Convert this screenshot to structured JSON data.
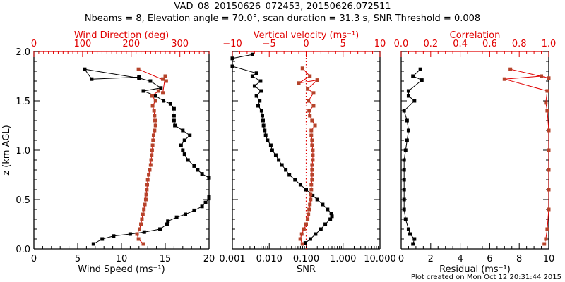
{
  "title": {
    "line1": "VAD_08_20150626_072453, 20150626.072511",
    "line2": "Nbeams = 8, Elevation angle = 70.0°, scan duration = 31.3 s, SNR Threshold = 0.008"
  },
  "footer": "Plot created on Mon Oct 12 20:31:44 2015",
  "colors": {
    "black_series": "#000000",
    "red_series": "#b5432a",
    "red_axis": "#e00000"
  },
  "chart_data": [
    {
      "type": "line",
      "panel": "wind",
      "ylabel": "z (km AGL)",
      "ylim": [
        0,
        2.0
      ],
      "yticks": [
        "0.0",
        "0.5",
        "1.0",
        "1.5",
        "2.0"
      ],
      "bottom_axis": {
        "label": "Wind Speed (ms⁻¹)",
        "range": [
          0,
          20
        ],
        "ticks": [
          "0",
          "5",
          "10",
          "15",
          "20"
        ]
      },
      "top_axis": {
        "label": "Wind Direction (deg)",
        "range": [
          0,
          360
        ],
        "ticks": [
          "0",
          "100",
          "200",
          "300"
        ]
      },
      "series": [
        {
          "name": "Wind Speed",
          "color": "black",
          "axis": "bottom",
          "points": [
            [
              6.8,
              0.05
            ],
            [
              7.8,
              0.1
            ],
            [
              9.1,
              0.13
            ],
            [
              11.0,
              0.15
            ],
            [
              12.6,
              0.17
            ],
            [
              14.4,
              0.2
            ],
            [
              15.2,
              0.25
            ],
            [
              15.3,
              0.28
            ],
            [
              16.3,
              0.32
            ],
            [
              17.3,
              0.35
            ],
            [
              18.3,
              0.39
            ],
            [
              19.2,
              0.43
            ],
            [
              19.6,
              0.47
            ],
            [
              20.0,
              0.51
            ],
            [
              20.0,
              0.53
            ],
            [
              20.0,
              0.72
            ],
            [
              19.2,
              0.76
            ],
            [
              18.7,
              0.8
            ],
            [
              18.3,
              0.84
            ],
            [
              17.6,
              0.9
            ],
            [
              17.2,
              0.96
            ],
            [
              17.0,
              1.0
            ],
            [
              16.8,
              1.05
            ],
            [
              17.2,
              1.1
            ],
            [
              17.8,
              1.15
            ],
            [
              17.0,
              1.2
            ],
            [
              16.1,
              1.25
            ],
            [
              16.0,
              1.3
            ],
            [
              16.0,
              1.35
            ],
            [
              16.0,
              1.42
            ],
            [
              15.6,
              1.47
            ],
            [
              14.8,
              1.5
            ],
            [
              13.9,
              1.55
            ],
            [
              12.5,
              1.6
            ],
            [
              14.5,
              1.63
            ],
            [
              13.3,
              1.7
            ],
            [
              12.0,
              1.73
            ],
            [
              5.8,
              1.82
            ],
            [
              6.6,
              1.72
            ],
            [
              12.0,
              1.74
            ]
          ]
        },
        {
          "name": "Wind Direction",
          "color": "red",
          "axis": "top",
          "points": [
            [
              225,
              0.05
            ],
            [
              215,
              0.1
            ],
            [
              212,
              0.15
            ],
            [
              217,
              0.2
            ],
            [
              220,
              0.25
            ],
            [
              222,
              0.3
            ],
            [
              224,
              0.35
            ],
            [
              226,
              0.4
            ],
            [
              228,
              0.45
            ],
            [
              230,
              0.5
            ],
            [
              231,
              0.55
            ],
            [
              232,
              0.6
            ],
            [
              233,
              0.65
            ],
            [
              234,
              0.7
            ],
            [
              236,
              0.75
            ],
            [
              238,
              0.8
            ],
            [
              240,
              0.85
            ],
            [
              241,
              0.9
            ],
            [
              242,
              0.95
            ],
            [
              243,
              1.0
            ],
            [
              244,
              1.05
            ],
            [
              245,
              1.1
            ],
            [
              246,
              1.15
            ],
            [
              248,
              1.2
            ],
            [
              250,
              1.25
            ],
            [
              249,
              1.3
            ],
            [
              248,
              1.35
            ],
            [
              247,
              1.4
            ],
            [
              244,
              1.45
            ],
            [
              250,
              1.5
            ],
            [
              243,
              1.55
            ],
            [
              256,
              1.6
            ],
            [
              265,
              1.58
            ],
            [
              270,
              1.75
            ],
            [
              265,
              1.72
            ],
            [
              272,
              1.7
            ],
            [
              215,
              1.82
            ]
          ]
        }
      ]
    },
    {
      "type": "line",
      "panel": "snr",
      "ylim": [
        0,
        2.0
      ],
      "bottom_axis": {
        "label": "SNR",
        "range": [
          0.001,
          10.0
        ],
        "scale": "log",
        "ticks": [
          "0.001",
          "0.010",
          "0.100",
          "1.000",
          "10.000"
        ]
      },
      "top_axis": {
        "label": "Vertical velocity (ms⁻¹)",
        "range": [
          -10,
          10
        ],
        "ticks": [
          "−10",
          "−5",
          "0",
          "5",
          "10"
        ]
      },
      "reference_line": {
        "axis": "top",
        "value": 0,
        "style": "dotted"
      },
      "series": [
        {
          "name": "SNR",
          "color": "black",
          "axis": "bottom",
          "points": [
            [
              0.095,
              0.06
            ],
            [
              0.13,
              0.1
            ],
            [
              0.18,
              0.15
            ],
            [
              0.25,
              0.2
            ],
            [
              0.33,
              0.25
            ],
            [
              0.45,
              0.3
            ],
            [
              0.5,
              0.33
            ],
            [
              0.48,
              0.36
            ],
            [
              0.38,
              0.4
            ],
            [
              0.28,
              0.45
            ],
            [
              0.2,
              0.5
            ],
            [
              0.15,
              0.54
            ],
            [
              0.1,
              0.6
            ],
            [
              0.07,
              0.65
            ],
            [
              0.05,
              0.7
            ],
            [
              0.035,
              0.75
            ],
            [
              0.028,
              0.8
            ],
            [
              0.022,
              0.85
            ],
            [
              0.018,
              0.9
            ],
            [
              0.015,
              0.95
            ],
            [
              0.012,
              1.0
            ],
            [
              0.011,
              1.05
            ],
            [
              0.009,
              1.1
            ],
            [
              0.008,
              1.15
            ],
            [
              0.0075,
              1.2
            ],
            [
              0.007,
              1.25
            ],
            [
              0.0068,
              1.3
            ],
            [
              0.0065,
              1.35
            ],
            [
              0.0062,
              1.4
            ],
            [
              0.005,
              1.45
            ],
            [
              0.0055,
              1.5
            ],
            [
              0.0045,
              1.55
            ],
            [
              0.006,
              1.6
            ],
            [
              0.004,
              1.65
            ],
            [
              0.0058,
              1.7
            ],
            [
              0.0035,
              1.75
            ],
            [
              0.0045,
              1.78
            ],
            [
              0.001,
              1.85
            ],
            [
              0.001,
              1.93
            ],
            [
              0.0035,
              1.97
            ]
          ]
        },
        {
          "name": "Vertical velocity",
          "color": "red",
          "axis": "top",
          "points": [
            [
              -0.5,
              0.05
            ],
            [
              -0.8,
              0.1
            ],
            [
              -0.6,
              0.15
            ],
            [
              -0.3,
              0.2
            ],
            [
              0.0,
              0.25
            ],
            [
              0.2,
              0.3
            ],
            [
              0.3,
              0.35
            ],
            [
              0.4,
              0.4
            ],
            [
              0.5,
              0.45
            ],
            [
              0.6,
              0.5
            ],
            [
              0.6,
              0.55
            ],
            [
              0.7,
              0.6
            ],
            [
              0.7,
              0.65
            ],
            [
              0.8,
              0.7
            ],
            [
              0.8,
              0.75
            ],
            [
              0.8,
              0.8
            ],
            [
              0.8,
              0.85
            ],
            [
              0.9,
              0.9
            ],
            [
              0.9,
              0.95
            ],
            [
              0.9,
              1.0
            ],
            [
              0.8,
              1.05
            ],
            [
              0.8,
              1.1
            ],
            [
              0.7,
              1.15
            ],
            [
              0.7,
              1.2
            ],
            [
              1.2,
              1.25
            ],
            [
              0.8,
              1.3
            ],
            [
              0.5,
              1.35
            ],
            [
              0.4,
              1.4
            ],
            [
              1.0,
              1.45
            ],
            [
              0.3,
              1.5
            ],
            [
              1.0,
              1.58
            ],
            [
              0.2,
              1.62
            ],
            [
              1.5,
              1.71
            ],
            [
              -1.0,
              1.68
            ],
            [
              0.5,
              1.75
            ],
            [
              -0.5,
              1.83
            ]
          ]
        }
      ]
    },
    {
      "type": "line",
      "panel": "correlation",
      "ylim": [
        0,
        2.0
      ],
      "bottom_axis": {
        "label": "Residual (ms⁻¹)",
        "range": [
          0,
          10
        ],
        "ticks": [
          "0",
          "2",
          "4",
          "6",
          "8",
          "10"
        ]
      },
      "top_axis": {
        "label": "Correlation",
        "range": [
          0.0,
          1.0
        ],
        "ticks": [
          "0.0",
          "0.2",
          "0.4",
          "0.6",
          "0.8",
          "1.0"
        ]
      },
      "series": [
        {
          "name": "Residual",
          "color": "black",
          "axis": "bottom",
          "points": [
            [
              0.8,
              0.05
            ],
            [
              0.9,
              0.1
            ],
            [
              0.6,
              0.15
            ],
            [
              0.5,
              0.2
            ],
            [
              0.3,
              0.3
            ],
            [
              0.2,
              0.4
            ],
            [
              0.2,
              0.5
            ],
            [
              0.2,
              0.6
            ],
            [
              0.2,
              0.7
            ],
            [
              0.2,
              0.8
            ],
            [
              0.2,
              0.9
            ],
            [
              0.3,
              1.0
            ],
            [
              0.4,
              1.1
            ],
            [
              0.5,
              1.2
            ],
            [
              0.4,
              1.3
            ],
            [
              0.2,
              1.4
            ],
            [
              0.9,
              1.5
            ],
            [
              0.5,
              1.55
            ],
            [
              0.5,
              1.6
            ],
            [
              1.4,
              1.71
            ],
            [
              0.8,
              1.75
            ],
            [
              1.3,
              1.82
            ]
          ]
        },
        {
          "name": "Correlation",
          "color": "red",
          "axis": "top",
          "points": [
            [
              0.97,
              0.05
            ],
            [
              0.98,
              0.1
            ],
            [
              0.99,
              0.2
            ],
            [
              1.0,
              0.4
            ],
            [
              1.0,
              0.6
            ],
            [
              1.0,
              0.8
            ],
            [
              1.0,
              1.0
            ],
            [
              1.0,
              1.2
            ],
            [
              0.99,
              1.4
            ],
            [
              0.98,
              1.48
            ],
            [
              0.99,
              1.6
            ],
            [
              0.7,
              1.72
            ],
            [
              0.95,
              1.75
            ],
            [
              1.0,
              1.73
            ],
            [
              0.74,
              1.82
            ]
          ]
        }
      ]
    }
  ]
}
